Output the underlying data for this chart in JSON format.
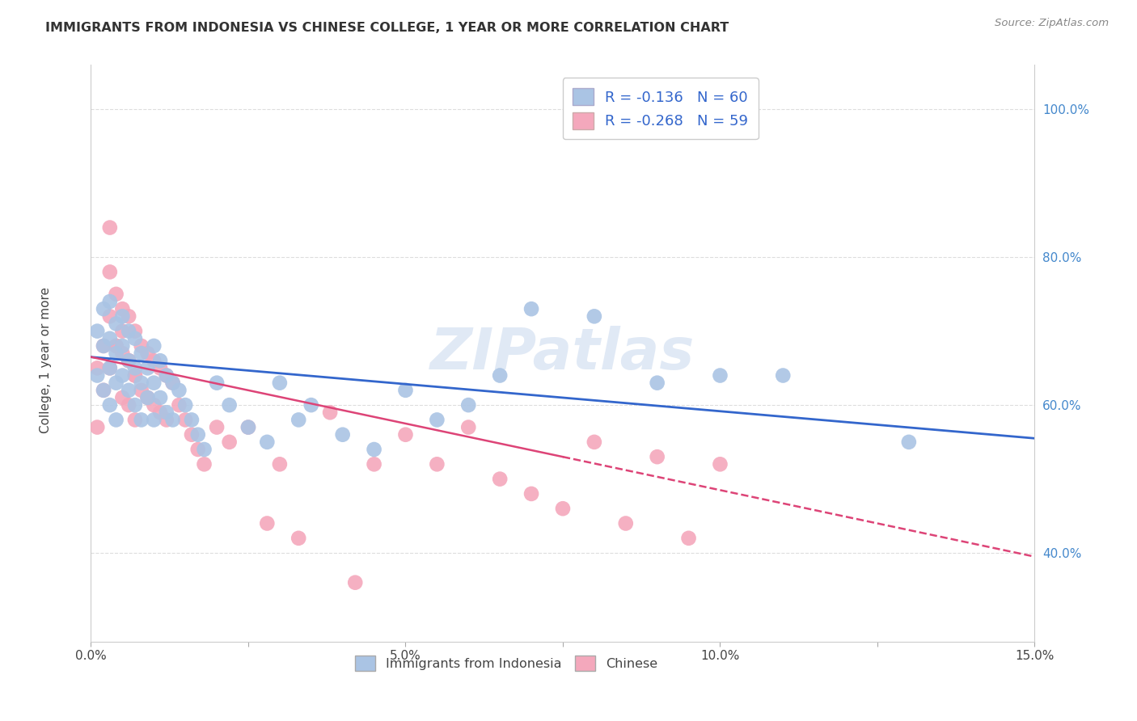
{
  "title": "IMMIGRANTS FROM INDONESIA VS CHINESE COLLEGE, 1 YEAR OR MORE CORRELATION CHART",
  "source": "Source: ZipAtlas.com",
  "xlabel_ticks": [
    "0.0%",
    "",
    "5.0%",
    "",
    "10.0%",
    "",
    "15.0%"
  ],
  "xlabel_tick_vals": [
    0.0,
    0.025,
    0.05,
    0.075,
    0.1,
    0.125,
    0.15
  ],
  "ylabel": "College, 1 year or more",
  "ylabel_ticks": [
    "40.0%",
    "60.0%",
    "80.0%",
    "100.0%"
  ],
  "ylabel_tick_vals": [
    0.4,
    0.6,
    0.8,
    1.0
  ],
  "xlim": [
    0.0,
    0.15
  ],
  "ylim": [
    0.28,
    1.06
  ],
  "R_blue": -0.136,
  "N_blue": 60,
  "R_pink": -0.268,
  "N_pink": 59,
  "legend_labels": [
    "Immigrants from Indonesia",
    "Chinese"
  ],
  "blue_color": "#aac4e4",
  "pink_color": "#f4a8bc",
  "blue_line_color": "#3366cc",
  "pink_line_color": "#dd4477",
  "watermark": "ZIPatlas",
  "blue_scatter_x": [
    0.001,
    0.001,
    0.002,
    0.002,
    0.002,
    0.003,
    0.003,
    0.003,
    0.003,
    0.004,
    0.004,
    0.004,
    0.004,
    0.005,
    0.005,
    0.005,
    0.006,
    0.006,
    0.006,
    0.007,
    0.007,
    0.007,
    0.008,
    0.008,
    0.008,
    0.009,
    0.009,
    0.01,
    0.01,
    0.01,
    0.011,
    0.011,
    0.012,
    0.012,
    0.013,
    0.013,
    0.014,
    0.015,
    0.016,
    0.017,
    0.018,
    0.02,
    0.022,
    0.025,
    0.028,
    0.03,
    0.033,
    0.035,
    0.04,
    0.045,
    0.05,
    0.055,
    0.06,
    0.065,
    0.07,
    0.08,
    0.09,
    0.1,
    0.11,
    0.13
  ],
  "blue_scatter_y": [
    0.7,
    0.64,
    0.73,
    0.68,
    0.62,
    0.74,
    0.69,
    0.65,
    0.6,
    0.71,
    0.67,
    0.63,
    0.58,
    0.72,
    0.68,
    0.64,
    0.7,
    0.66,
    0.62,
    0.69,
    0.65,
    0.6,
    0.67,
    0.63,
    0.58,
    0.65,
    0.61,
    0.68,
    0.63,
    0.58,
    0.66,
    0.61,
    0.64,
    0.59,
    0.63,
    0.58,
    0.62,
    0.6,
    0.58,
    0.56,
    0.54,
    0.63,
    0.6,
    0.57,
    0.55,
    0.63,
    0.58,
    0.6,
    0.56,
    0.54,
    0.62,
    0.58,
    0.6,
    0.64,
    0.73,
    0.72,
    0.63,
    0.64,
    0.64,
    0.55
  ],
  "pink_scatter_x": [
    0.001,
    0.001,
    0.002,
    0.002,
    0.003,
    0.003,
    0.003,
    0.004,
    0.004,
    0.005,
    0.005,
    0.005,
    0.006,
    0.006,
    0.006,
    0.007,
    0.007,
    0.007,
    0.008,
    0.008,
    0.009,
    0.009,
    0.01,
    0.01,
    0.011,
    0.011,
    0.012,
    0.012,
    0.013,
    0.014,
    0.015,
    0.016,
    0.017,
    0.018,
    0.02,
    0.022,
    0.025,
    0.028,
    0.03,
    0.033,
    0.038,
    0.042,
    0.045,
    0.05,
    0.055,
    0.06,
    0.065,
    0.07,
    0.075,
    0.08,
    0.085,
    0.09,
    0.095,
    0.1,
    0.003,
    0.004,
    0.005,
    0.006,
    0.007
  ],
  "pink_scatter_y": [
    0.65,
    0.57,
    0.68,
    0.62,
    0.84,
    0.78,
    0.72,
    0.75,
    0.68,
    0.73,
    0.67,
    0.61,
    0.72,
    0.66,
    0.6,
    0.7,
    0.64,
    0.58,
    0.68,
    0.62,
    0.67,
    0.61,
    0.66,
    0.6,
    0.65,
    0.59,
    0.64,
    0.58,
    0.63,
    0.6,
    0.58,
    0.56,
    0.54,
    0.52,
    0.57,
    0.55,
    0.57,
    0.44,
    0.52,
    0.42,
    0.59,
    0.36,
    0.52,
    0.56,
    0.52,
    0.57,
    0.5,
    0.48,
    0.46,
    0.55,
    0.44,
    0.53,
    0.42,
    0.52,
    0.65,
    0.68,
    0.7,
    0.66,
    0.64
  ]
}
